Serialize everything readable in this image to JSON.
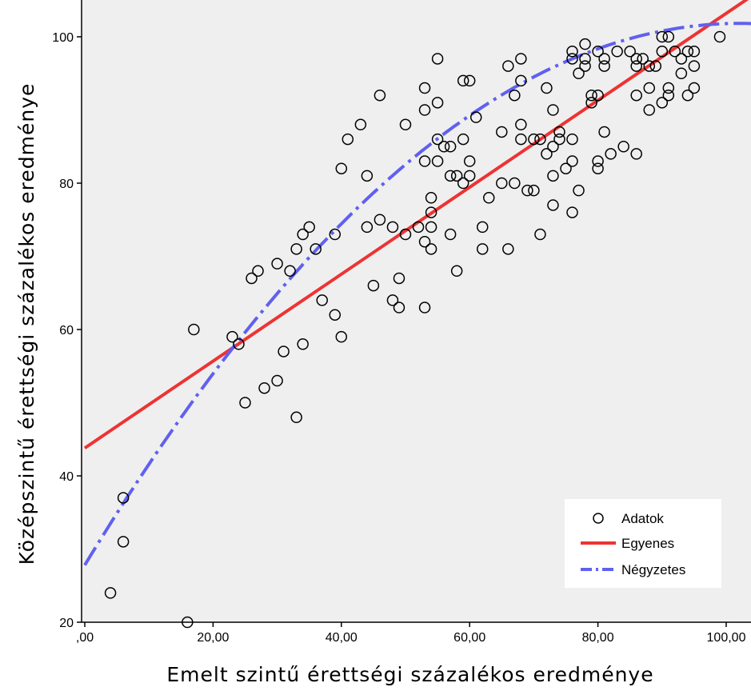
{
  "chart_data": {
    "type": "scatter",
    "xlabel": "Emelt szintű érettségi százalékos eredménye",
    "ylabel": "Középszintű érettségi százalékos eredménye",
    "xlim": [
      0,
      104
    ],
    "ylim": [
      20,
      104
    ],
    "x_ticks": [
      {
        "value": 0,
        "label": ",00"
      },
      {
        "value": 20,
        "label": "20,00"
      },
      {
        "value": 40,
        "label": "40,00"
      },
      {
        "value": 60,
        "label": "60,00"
      },
      {
        "value": 80,
        "label": "80,00"
      },
      {
        "value": 100,
        "label": "100,00"
      }
    ],
    "y_ticks": [
      {
        "value": 20,
        "label": "20"
      },
      {
        "value": 40,
        "label": "40"
      },
      {
        "value": 60,
        "label": "60"
      },
      {
        "value": 80,
        "label": "80"
      },
      {
        "value": 100,
        "label": "100"
      }
    ],
    "grid": false,
    "background": "#efefef",
    "legend_position": "bottom-right",
    "series": [
      {
        "name": "Adatok",
        "kind": "scatter",
        "color": "#000000",
        "points": [
          [
            4,
            24
          ],
          [
            6,
            37
          ],
          [
            6,
            31
          ],
          [
            16,
            20
          ],
          [
            17,
            60
          ],
          [
            23,
            59
          ],
          [
            24,
            58
          ],
          [
            25,
            50
          ],
          [
            26,
            67
          ],
          [
            27,
            68
          ],
          [
            28,
            52
          ],
          [
            30,
            53
          ],
          [
            30,
            69
          ],
          [
            31,
            57
          ],
          [
            32,
            68
          ],
          [
            33,
            71
          ],
          [
            33,
            48
          ],
          [
            34,
            73
          ],
          [
            34,
            58
          ],
          [
            35,
            74
          ],
          [
            36,
            71
          ],
          [
            37,
            64
          ],
          [
            39,
            73
          ],
          [
            39,
            62
          ],
          [
            40,
            82
          ],
          [
            40,
            59
          ],
          [
            41,
            86
          ],
          [
            43,
            88
          ],
          [
            44,
            74
          ],
          [
            44,
            81
          ],
          [
            45,
            66
          ],
          [
            46,
            92
          ],
          [
            46,
            75
          ],
          [
            48,
            64
          ],
          [
            48,
            74
          ],
          [
            49,
            67
          ],
          [
            49,
            63
          ],
          [
            50,
            88
          ],
          [
            50,
            73
          ],
          [
            52,
            74
          ],
          [
            53,
            93
          ],
          [
            53,
            90
          ],
          [
            53,
            83
          ],
          [
            53,
            72
          ],
          [
            53,
            63
          ],
          [
            54,
            78
          ],
          [
            54,
            76
          ],
          [
            54,
            74
          ],
          [
            54,
            71
          ],
          [
            55,
            97
          ],
          [
            55,
            91
          ],
          [
            55,
            86
          ],
          [
            55,
            83
          ],
          [
            56,
            85
          ],
          [
            57,
            85
          ],
          [
            57,
            81
          ],
          [
            57,
            73
          ],
          [
            58,
            81
          ],
          [
            58,
            68
          ],
          [
            59,
            94
          ],
          [
            59,
            86
          ],
          [
            59,
            80
          ],
          [
            60,
            94
          ],
          [
            60,
            83
          ],
          [
            60,
            81
          ],
          [
            61,
            89
          ],
          [
            62,
            74
          ],
          [
            62,
            71
          ],
          [
            63,
            78
          ],
          [
            65,
            87
          ],
          [
            65,
            80
          ],
          [
            66,
            96
          ],
          [
            66,
            71
          ],
          [
            67,
            92
          ],
          [
            67,
            80
          ],
          [
            68,
            97
          ],
          [
            68,
            94
          ],
          [
            68,
            88
          ],
          [
            68,
            86
          ],
          [
            69,
            79
          ],
          [
            70,
            86
          ],
          [
            70,
            79
          ],
          [
            71,
            86
          ],
          [
            71,
            73
          ],
          [
            72,
            93
          ],
          [
            72,
            84
          ],
          [
            73,
            90
          ],
          [
            73,
            85
          ],
          [
            73,
            81
          ],
          [
            73,
            77
          ],
          [
            74,
            87
          ],
          [
            74,
            86
          ],
          [
            75,
            82
          ],
          [
            76,
            98
          ],
          [
            76,
            97
          ],
          [
            76,
            86
          ],
          [
            76,
            83
          ],
          [
            76,
            76
          ],
          [
            77,
            95
          ],
          [
            77,
            79
          ],
          [
            78,
            99
          ],
          [
            78,
            97
          ],
          [
            78,
            96
          ],
          [
            79,
            92
          ],
          [
            79,
            91
          ],
          [
            80,
            98
          ],
          [
            80,
            92
          ],
          [
            80,
            83
          ],
          [
            80,
            82
          ],
          [
            81,
            97
          ],
          [
            81,
            96
          ],
          [
            81,
            87
          ],
          [
            82,
            84
          ],
          [
            83,
            98
          ],
          [
            84,
            85
          ],
          [
            85,
            98
          ],
          [
            86,
            97
          ],
          [
            86,
            96
          ],
          [
            86,
            92
          ],
          [
            86,
            84
          ],
          [
            87,
            97
          ],
          [
            88,
            96
          ],
          [
            88,
            93
          ],
          [
            88,
            90
          ],
          [
            89,
            96
          ],
          [
            90,
            100
          ],
          [
            90,
            98
          ],
          [
            90,
            91
          ],
          [
            91,
            100
          ],
          [
            91,
            93
          ],
          [
            91,
            92
          ],
          [
            92,
            98
          ],
          [
            93,
            97
          ],
          [
            93,
            95
          ],
          [
            94,
            98
          ],
          [
            94,
            92
          ],
          [
            95,
            98
          ],
          [
            95,
            96
          ],
          [
            95,
            93
          ],
          [
            99,
            100
          ]
        ]
      },
      {
        "name": "Egyenes",
        "kind": "line",
        "color": "#ee3333",
        "intercept": 43.8,
        "slope": 0.594
      },
      {
        "name": "Négyzetes",
        "kind": "line",
        "color": "#6060f0",
        "dash": "dash-dot",
        "coefficients": [
          27.8,
          1.45,
          -0.0071
        ]
      }
    ]
  }
}
